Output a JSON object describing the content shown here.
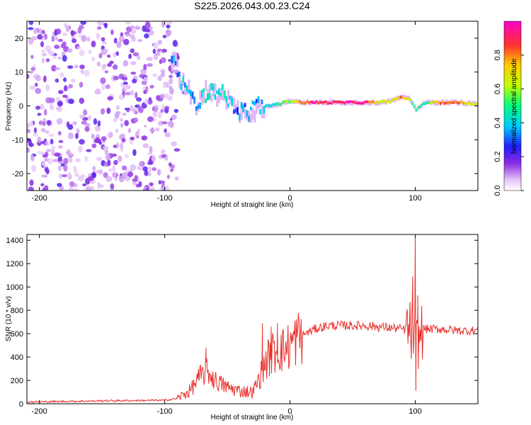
{
  "title": "S225.2026.043.00.23.C24",
  "chart_data": [
    {
      "type": "heatmap",
      "name": "spectrogram",
      "xlabel": "Height of straight line (km)",
      "ylabel": "Frequency (Hz)",
      "xlim": [
        -210,
        150
      ],
      "ylim": [
        -25,
        25
      ],
      "xticks": [
        -200,
        -100,
        0,
        100
      ],
      "yticks": [
        -20,
        -10,
        0,
        10,
        20
      ],
      "colorbar": {
        "label": "Normalized spectral amplitude",
        "range": [
          0,
          1
        ],
        "ticks": [
          "0.0",
          "0.2",
          "0.4",
          "0.6",
          "0.8"
        ],
        "tick_values": [
          0,
          0.2,
          0.4,
          0.6,
          0.8
        ]
      },
      "noise_region_km": [
        -210,
        -90
      ],
      "signal_track": [
        {
          "x": -95,
          "f": 14,
          "a": 0.3
        },
        {
          "x": -90,
          "f": 10,
          "a": 0.35
        },
        {
          "x": -85,
          "f": 5,
          "a": 0.4
        },
        {
          "x": -80,
          "f": 3,
          "a": 0.35
        },
        {
          "x": -75,
          "f": 0,
          "a": 0.3
        },
        {
          "x": -68,
          "f": 4,
          "a": 0.45
        },
        {
          "x": -60,
          "f": 3,
          "a": 0.4
        },
        {
          "x": -55,
          "f": 5,
          "a": 0.5
        },
        {
          "x": -50,
          "f": 2,
          "a": 0.45
        },
        {
          "x": -45,
          "f": -1,
          "a": 0.3
        },
        {
          "x": -38,
          "f": -2,
          "a": 0.35
        },
        {
          "x": -30,
          "f": -1,
          "a": 0.3
        },
        {
          "x": -20,
          "f": 0,
          "a": 0.45
        },
        {
          "x": -10,
          "f": 0.5,
          "a": 0.5
        },
        {
          "x": 0,
          "f": 1.5,
          "a": 0.6
        },
        {
          "x": 10,
          "f": 1.0,
          "a": 0.85
        },
        {
          "x": 20,
          "f": 1.0,
          "a": 0.9
        },
        {
          "x": 30,
          "f": 1.0,
          "a": 0.9
        },
        {
          "x": 45,
          "f": 1.0,
          "a": 0.95
        },
        {
          "x": 60,
          "f": 1.0,
          "a": 0.9
        },
        {
          "x": 70,
          "f": 1.0,
          "a": 0.7
        },
        {
          "x": 80,
          "f": 1.5,
          "a": 0.65
        },
        {
          "x": 88,
          "f": 2.5,
          "a": 0.85
        },
        {
          "x": 95,
          "f": 2.0,
          "a": 0.6
        },
        {
          "x": 100,
          "f": -1.0,
          "a": 0.45
        },
        {
          "x": 108,
          "f": 1.0,
          "a": 0.5
        },
        {
          "x": 120,
          "f": 1.0,
          "a": 0.85
        },
        {
          "x": 135,
          "f": 1.0,
          "a": 0.8
        },
        {
          "x": 150,
          "f": 0.5,
          "a": 0.6
        }
      ]
    },
    {
      "type": "line",
      "name": "snr",
      "xlabel": "Height of straight line (km)",
      "ylabel": "SNR (10 * v/v)",
      "xlim": [
        -210,
        150
      ],
      "ylim": [
        0,
        1450
      ],
      "xticks": [
        -200,
        -100,
        0,
        100
      ],
      "yticks": [
        0,
        200,
        400,
        600,
        800,
        1000,
        1200,
        1400
      ],
      "color": "#e8302a",
      "x": [
        -210,
        -150,
        -100,
        -90,
        -80,
        -72,
        -66,
        -60,
        -50,
        -40,
        -30,
        -25,
        -20,
        -15,
        -10,
        -5,
        0,
        5,
        10,
        20,
        30,
        40,
        50,
        60,
        70,
        80,
        90,
        95,
        98,
        100,
        102,
        104,
        106,
        110,
        120,
        130,
        140,
        150
      ],
      "y": [
        15,
        25,
        30,
        45,
        110,
        230,
        280,
        200,
        140,
        110,
        100,
        200,
        350,
        420,
        470,
        460,
        500,
        560,
        590,
        640,
        670,
        670,
        670,
        670,
        660,
        650,
        640,
        620,
        600,
        560,
        520,
        580,
        640,
        640,
        640,
        630,
        625,
        630
      ],
      "spikes": [
        {
          "x": -67,
          "y": 480
        },
        {
          "x": -22,
          "y": 690
        },
        {
          "x": -15,
          "y": 660
        },
        {
          "x": -10,
          "y": 690
        },
        {
          "x": 98,
          "y": 1090
        },
        {
          "x": 100,
          "y": 1440
        },
        {
          "x": 100.5,
          "y": 110
        },
        {
          "x": 102,
          "y": 930
        }
      ]
    }
  ]
}
